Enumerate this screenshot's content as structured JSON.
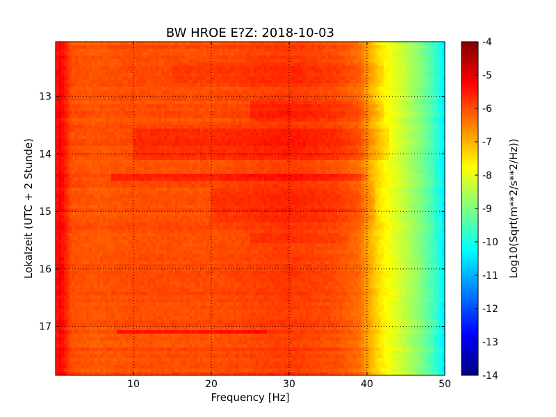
{
  "chart_data": {
    "type": "heatmap",
    "title": "BW HROE E?Z: 2018-10-03",
    "xlabel": "Frequency [Hz]",
    "ylabel": "Lokalzeit (UTC + 2 Stunde)",
    "x_range": [
      0,
      50
    ],
    "y_range": [
      12.05,
      17.85
    ],
    "y_inverted": true,
    "x_ticks": [
      "10",
      "20",
      "30",
      "40",
      "50"
    ],
    "x_tick_values": [
      10,
      20,
      30,
      40,
      50
    ],
    "y_ticks": [
      "13",
      "14",
      "15",
      "16",
      "17"
    ],
    "y_tick_values": [
      13,
      14,
      15,
      16,
      17
    ],
    "grid": true,
    "grid_style": "dotted",
    "colormap": "jet",
    "colorbar": {
      "label": "Log10(Sqrt(m**2/s**2/Hz))",
      "range": [
        -14,
        -4
      ],
      "ticks": [
        "-4",
        "-5",
        "-6",
        "-7",
        "-8",
        "-9",
        "-10",
        "-11",
        "-12",
        "-13",
        "-14"
      ],
      "tick_values": [
        -4,
        -5,
        -6,
        -7,
        -8,
        -9,
        -10,
        -11,
        -12,
        -13,
        -14
      ]
    },
    "spectrum_profile": {
      "frequency_hz": [
        0,
        0.5,
        1.2,
        2,
        5,
        10,
        20,
        30,
        36,
        39,
        40.5,
        42,
        43.5,
        45,
        47,
        49,
        50
      ],
      "level": [
        -5.6,
        -5.2,
        -5.5,
        -6.0,
        -6.1,
        -6.0,
        -6.0,
        -5.8,
        -6.0,
        -6.3,
        -7.0,
        -7.6,
        -8.0,
        -8.4,
        -9.0,
        -9.8,
        -10.5
      ]
    },
    "bands": [
      {
        "time_start": 12.4,
        "time_end": 12.75,
        "f_start": 15,
        "f_end": 42,
        "delta": 0.15
      },
      {
        "time_start": 13.05,
        "time_end": 13.45,
        "f_start": 25,
        "f_end": 42,
        "delta": 0.25
      },
      {
        "time_start": 13.55,
        "time_end": 14.1,
        "f_start": 10,
        "f_end": 43,
        "delta": 0.3
      },
      {
        "time_start": 14.35,
        "time_end": 14.45,
        "f_start": 7,
        "f_end": 40,
        "delta": 0.4
      },
      {
        "time_start": 14.6,
        "time_end": 15.2,
        "f_start": 20,
        "f_end": 41,
        "delta": 0.25
      },
      {
        "time_start": 15.35,
        "time_end": 15.55,
        "f_start": 25,
        "f_end": 38,
        "delta": 0.2
      },
      {
        "time_start": 17.05,
        "time_end": 17.1,
        "f_start": 8,
        "f_end": 27,
        "delta": 0.5
      }
    ]
  }
}
